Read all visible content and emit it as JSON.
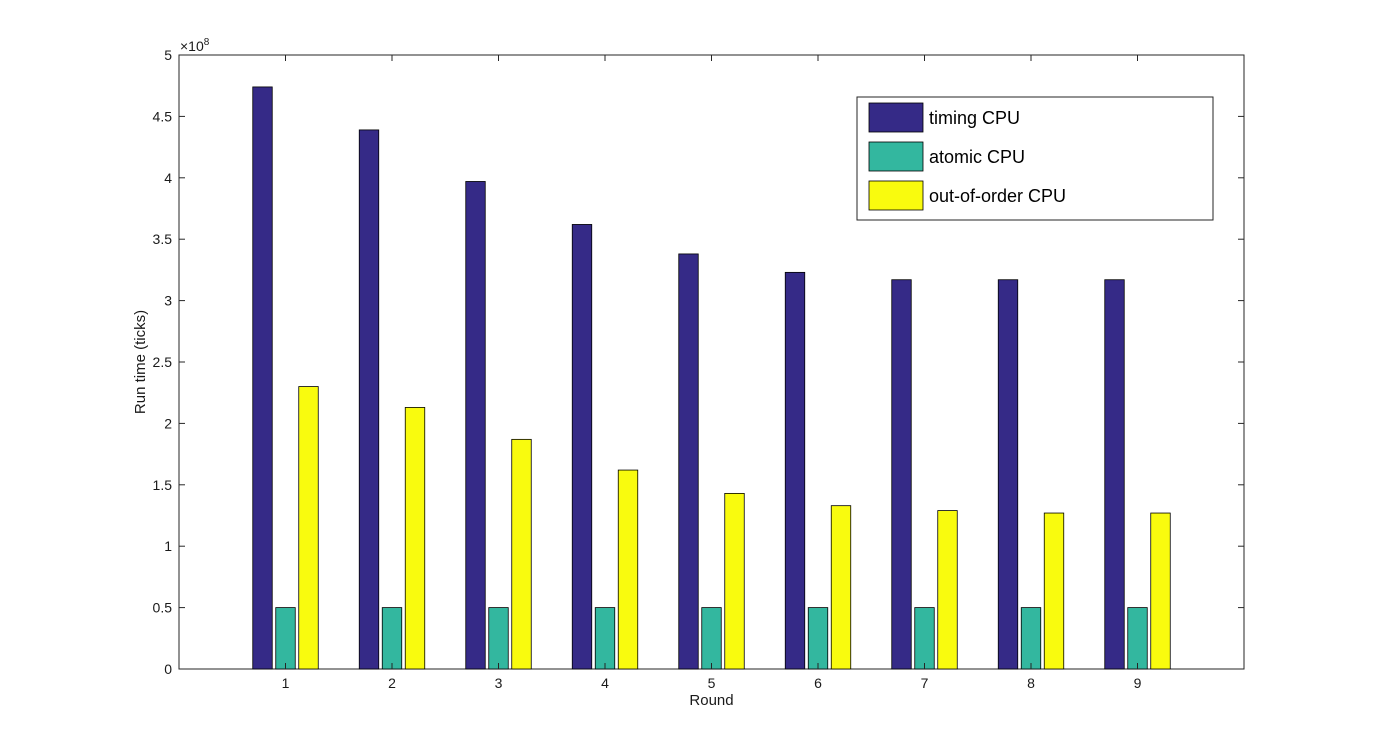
{
  "chart_data": {
    "type": "bar",
    "categories": [
      "1",
      "2",
      "3",
      "4",
      "5",
      "6",
      "7",
      "8",
      "9"
    ],
    "series": [
      {
        "name": "timing CPU",
        "color": "#352a87",
        "values": [
          474000000.0,
          439000000.0,
          397000000.0,
          362000000.0,
          338000000.0,
          323000000.0,
          317000000.0,
          317000000.0,
          317000000.0
        ]
      },
      {
        "name": "atomic CPU",
        "color": "#33b79f",
        "values": [
          50000000.0,
          50000000.0,
          50000000.0,
          50000000.0,
          50000000.0,
          50000000.0,
          50000000.0,
          50000000.0,
          50000000.0
        ]
      },
      {
        "name": "out-of-order CPU",
        "color": "#f9fb0e",
        "values": [
          230000000.0,
          213000000.0,
          187000000.0,
          162000000.0,
          143000000.0,
          133000000.0,
          129000000.0,
          127000000.0,
          127000000.0
        ]
      }
    ],
    "xlabel": "Round",
    "ylabel": "Run time (ticks)",
    "ylim": [
      0,
      500000000.0
    ],
    "xlim": [
      0,
      10
    ],
    "ytick_labels": [
      "0",
      "0.5",
      "1",
      "1.5",
      "2",
      "2.5",
      "3",
      "3.5",
      "4",
      "4.5",
      "5"
    ],
    "y_exponent_base": "×10",
    "y_exponent_power": "8",
    "grid": false,
    "legend_position": "top-right"
  }
}
